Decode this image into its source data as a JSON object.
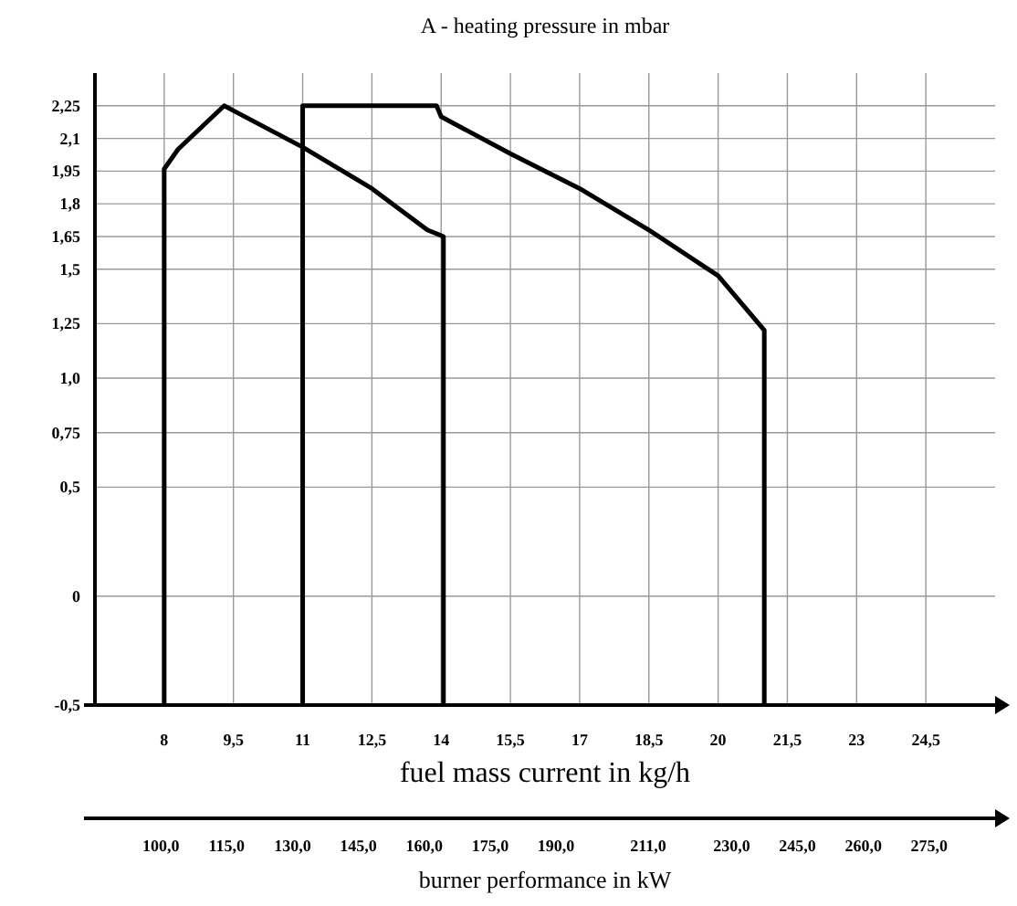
{
  "chart_data": {
    "type": "line",
    "title": "A - heating pressure in mbar",
    "xlabel": "fuel mass current in kg/h",
    "x2label": "burner performance in kW",
    "xlim": [
      6.5,
      26
    ],
    "xticks": [
      8,
      {
        "value": 9.5,
        "label": "9,5"
      },
      11,
      {
        "value": 12.5,
        "label": "12,5"
      },
      14,
      {
        "value": 15.5,
        "label": "15,5"
      },
      17,
      {
        "value": 18.5,
        "label": "18,5"
      },
      20,
      {
        "value": 21.5,
        "label": "21,5"
      },
      23,
      {
        "value": 24.5,
        "label": "24,5"
      }
    ],
    "x2lim": [
      85,
      290
    ],
    "x2ticks": [
      {
        "value": 100,
        "label": "100,0"
      },
      {
        "value": 115,
        "label": "115,0"
      },
      {
        "value": 130,
        "label": "130,0"
      },
      {
        "value": 145,
        "label": "145,0"
      },
      {
        "value": 160,
        "label": "160,0"
      },
      {
        "value": 175,
        "label": "175,0"
      },
      {
        "value": 190,
        "label": "190,0"
      },
      {
        "value": 211,
        "label": "211,0"
      },
      {
        "value": 230,
        "label": "230,0"
      },
      {
        "value": 245,
        "label": "245,0"
      },
      {
        "value": 260,
        "label": "260,0"
      },
      {
        "value": 275,
        "label": "275,0"
      }
    ],
    "ylim": [
      -0.5,
      2.4
    ],
    "yticks": [
      {
        "value": -0.5,
        "label": "-0,5"
      },
      0,
      {
        "value": 0.5,
        "label": "0,5"
      },
      {
        "value": 0.75,
        "label": "0,75"
      },
      {
        "value": 1,
        "label": "1,0"
      },
      {
        "value": 1.25,
        "label": "1,25"
      },
      {
        "value": 1.5,
        "label": "1,5"
      },
      {
        "value": 1.65,
        "label": "1,65"
      },
      {
        "value": 1.8,
        "label": "1,8"
      },
      {
        "value": 1.95,
        "label": "1,95"
      },
      {
        "value": 2.1,
        "label": "2,1"
      },
      {
        "value": 2.25,
        "label": "2,25"
      }
    ],
    "grid": true,
    "marker": "none",
    "line_style": "solid",
    "series": [
      {
        "color": "#000000",
        "x": [
          8,
          8,
          8.3,
          9.3,
          11,
          12.5,
          13.7,
          14.05,
          14.05
        ],
        "values": [
          -0.5,
          1.96,
          2.05,
          2.25,
          2.06,
          1.87,
          1.68,
          1.65,
          -0.5
        ]
      },
      {
        "color": "#000000",
        "x": [
          11,
          11,
          13.9,
          14,
          15.5,
          17,
          18.5,
          20,
          21,
          21
        ],
        "values": [
          -0.5,
          2.25,
          2.25,
          2.2,
          2.03,
          1.87,
          1.68,
          1.47,
          1.22,
          -0.5
        ]
      }
    ]
  }
}
